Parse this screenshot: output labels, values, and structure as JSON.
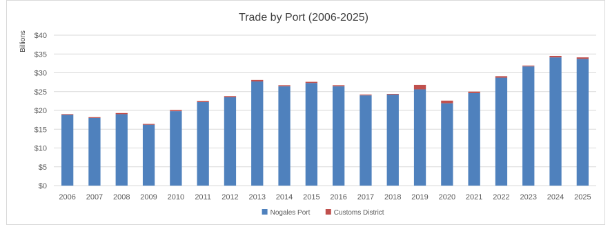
{
  "chart_data": {
    "type": "bar",
    "stacked": true,
    "title": "Trade by Port (2006-2025)",
    "ylabel": "Billions",
    "xlabel": "",
    "categories": [
      "2006",
      "2007",
      "2008",
      "2009",
      "2010",
      "2011",
      "2012",
      "2013",
      "2014",
      "2015",
      "2016",
      "2017",
      "2018",
      "2019",
      "2020",
      "2021",
      "2022",
      "2023",
      "2024",
      "2025"
    ],
    "series": [
      {
        "name": "Nogales Port",
        "color": "#4f81bd",
        "values": [
          18.8,
          18.0,
          19.0,
          16.2,
          19.8,
          22.2,
          23.5,
          27.7,
          26.4,
          27.3,
          26.4,
          24.0,
          24.2,
          25.6,
          21.9,
          24.6,
          28.7,
          31.7,
          34.1,
          33.7
        ]
      },
      {
        "name": "Customs District",
        "color": "#c0504d",
        "values": [
          0.2,
          0.2,
          0.3,
          0.2,
          0.3,
          0.3,
          0.3,
          0.4,
          0.3,
          0.3,
          0.3,
          0.2,
          0.2,
          1.2,
          0.7,
          0.4,
          0.4,
          0.2,
          0.4,
          0.4
        ]
      }
    ],
    "ylim": [
      0,
      40
    ],
    "yticks": [
      0,
      5,
      10,
      15,
      20,
      25,
      30,
      35,
      40
    ],
    "ytick_labels": [
      "$0",
      "$5",
      "$10",
      "$15",
      "$20",
      "$25",
      "$30",
      "$35",
      "$40"
    ],
    "grid": true,
    "legend_position": "bottom"
  }
}
